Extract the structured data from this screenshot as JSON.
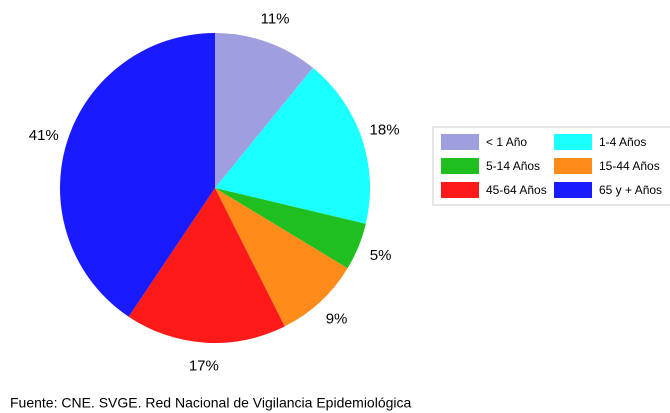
{
  "chart_data": {
    "type": "pie",
    "categories": [
      "< 1 Año",
      "1-4 Años",
      "5-14 Años",
      "15-44 Años",
      "45-64 Años",
      "65 y + Años"
    ],
    "values": [
      11,
      18,
      5,
      9,
      17,
      41
    ],
    "value_labels": [
      "11%",
      "18%",
      "5%",
      "9%",
      "17%",
      "41%"
    ],
    "colors": [
      "#9f9fdf",
      "#1affff",
      "#1fbf1f",
      "#ff8c1a",
      "#ff1a1a",
      "#1a1aff"
    ],
    "legend": "right",
    "source": "Fuente: CNE. SVGE. Red Nacional de Vigilancia Epidemiológica"
  }
}
